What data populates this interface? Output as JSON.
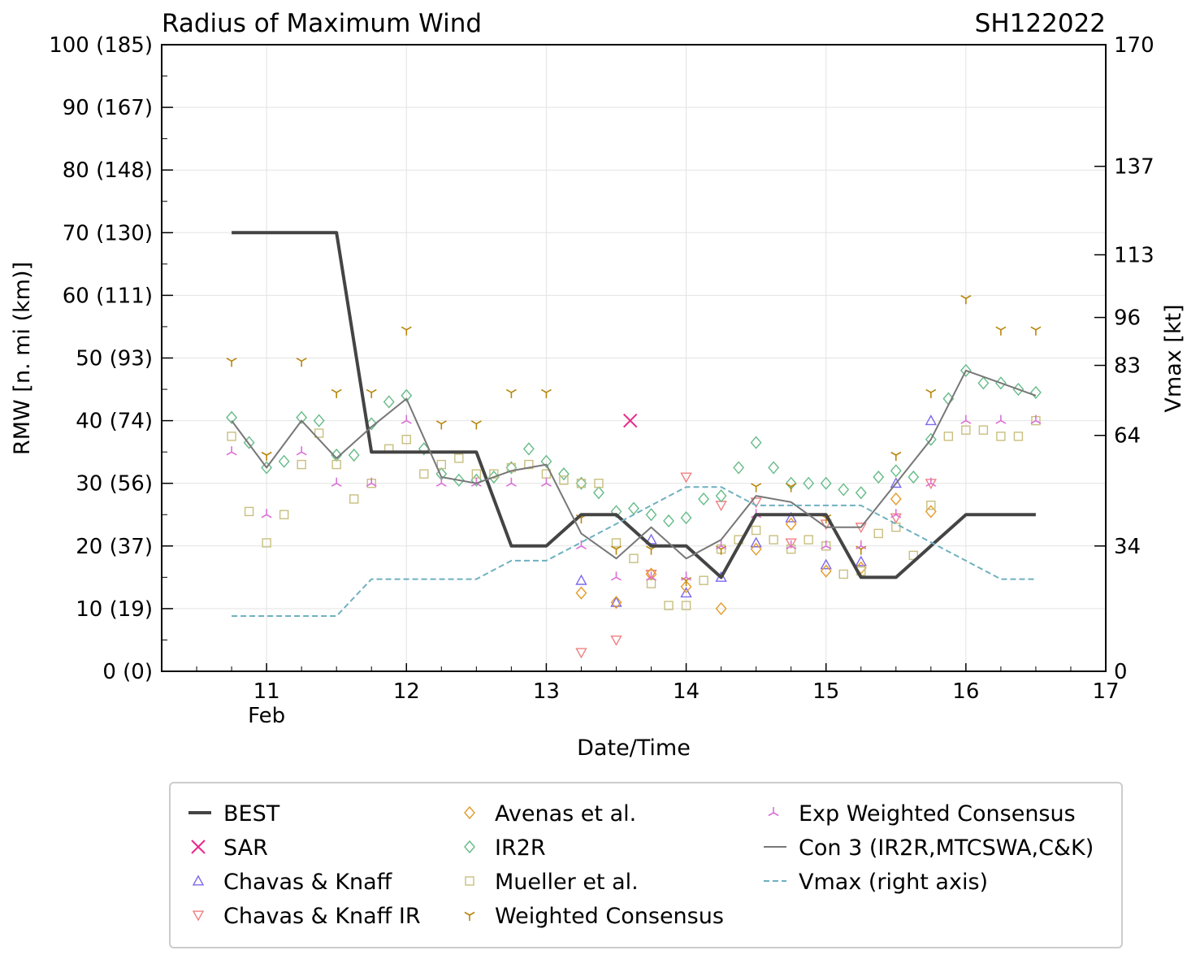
{
  "chart_data": {
    "type": "line",
    "title": "Radius of Maximum Wind",
    "storm_id": "SH122022",
    "xlabel": "Date/Time",
    "ylabel": "RMW [n. mi (km)]",
    "y2label": "Vmax [kt]",
    "xlim": [
      10.25,
      17
    ],
    "ylim": [
      0,
      100
    ],
    "y2lim": [
      0,
      170
    ],
    "x_ticks": [
      {
        "value": 11,
        "label": "11",
        "sublabel": "Feb"
      },
      {
        "value": 12,
        "label": "12",
        "sublabel": ""
      },
      {
        "value": 13,
        "label": "13",
        "sublabel": ""
      },
      {
        "value": 14,
        "label": "14",
        "sublabel": ""
      },
      {
        "value": 15,
        "label": "15",
        "sublabel": ""
      },
      {
        "value": 16,
        "label": "16",
        "sublabel": ""
      },
      {
        "value": 17,
        "label": "17",
        "sublabel": ""
      }
    ],
    "y_ticks": [
      {
        "value": 0,
        "label": "0 (0)"
      },
      {
        "value": 10,
        "label": "10 (19)"
      },
      {
        "value": 20,
        "label": "20 (37)"
      },
      {
        "value": 30,
        "label": "30 (56)"
      },
      {
        "value": 40,
        "label": "40 (74)"
      },
      {
        "value": 50,
        "label": "50 (93)"
      },
      {
        "value": 60,
        "label": "60 (111)"
      },
      {
        "value": 70,
        "label": "70 (130)"
      },
      {
        "value": 80,
        "label": "80 (148)"
      },
      {
        "value": 90,
        "label": "90 (167)"
      },
      {
        "value": 100,
        "label": "100 (185)"
      }
    ],
    "y2_ticks": [
      {
        "value": 0,
        "label": "0"
      },
      {
        "value": 34,
        "label": "34"
      },
      {
        "value": 64,
        "label": "64"
      },
      {
        "value": 83,
        "label": "83"
      },
      {
        "value": 96,
        "label": "96"
      },
      {
        "value": 113,
        "label": "113"
      },
      {
        "value": 137,
        "label": "137"
      },
      {
        "value": 170,
        "label": "170"
      }
    ],
    "grid": true,
    "legend_position": "bottom",
    "series": [
      {
        "name": "BEST",
        "kind": "line",
        "style": "solid",
        "color": "#444444",
        "x": [
          10.75,
          11.0,
          11.25,
          11.5,
          11.75,
          12.0,
          12.25,
          12.5,
          12.75,
          13.0,
          13.25,
          13.5,
          13.75,
          14.0,
          14.25,
          14.5,
          14.75,
          15.0,
          15.25,
          15.5,
          15.75,
          16.0,
          16.25,
          16.5
        ],
        "y": [
          70,
          70,
          70,
          70,
          35,
          35,
          35,
          35,
          20,
          20,
          25,
          25,
          20,
          20,
          15,
          25,
          25,
          25,
          15,
          15,
          20,
          25,
          25,
          25
        ]
      },
      {
        "name": "SAR",
        "kind": "marker",
        "marker": "x",
        "color": "#e7298a",
        "x": [
          13.6
        ],
        "y": [
          40
        ]
      },
      {
        "name": "Chavas & Knaff",
        "kind": "marker",
        "marker": "triangle-up",
        "color": "#7b68ee",
        "x": [
          13.25,
          13.5,
          13.75,
          14.0,
          14.25,
          14.5,
          14.75,
          15.0,
          15.25,
          15.5,
          15.75
        ],
        "y": [
          14.5,
          11,
          21,
          12.5,
          15,
          20.5,
          24.5,
          17,
          17.5,
          30,
          40
        ]
      },
      {
        "name": "Chavas & Knaff IR",
        "kind": "marker",
        "marker": "triangle-down",
        "color": "#f08080",
        "x": [
          13.25,
          13.5,
          13.75,
          14.0,
          14.25,
          14.5,
          14.75,
          15.0,
          15.25,
          15.5,
          15.75
        ],
        "y": [
          3,
          5,
          15.5,
          31,
          26.5,
          27,
          20.5,
          23.5,
          23,
          24.5,
          30
        ]
      },
      {
        "name": "Avenas et al.",
        "kind": "marker",
        "marker": "diamond",
        "color": "#e69a28",
        "x": [
          13.25,
          13.5,
          13.75,
          14.0,
          14.25,
          14.5,
          14.75,
          15.0,
          15.25,
          15.5,
          15.75
        ],
        "y": [
          12.5,
          11,
          15.5,
          13.5,
          10,
          19.5,
          23.5,
          16,
          16.5,
          27.5,
          25.5
        ]
      },
      {
        "name": "IR2R",
        "kind": "marker",
        "marker": "diamond",
        "color": "#66bb88",
        "x": [
          10.75,
          10.875,
          11.0,
          11.125,
          11.25,
          11.375,
          11.5,
          11.625,
          11.75,
          11.875,
          12.0,
          12.125,
          12.25,
          12.375,
          12.5,
          12.625,
          12.75,
          12.875,
          13.0,
          13.125,
          13.25,
          13.375,
          13.5,
          13.625,
          13.75,
          13.875,
          14.0,
          14.125,
          14.25,
          14.375,
          14.5,
          14.625,
          14.75,
          14.875,
          15.0,
          15.125,
          15.25,
          15.375,
          15.5,
          15.625,
          15.75,
          15.875,
          16.0,
          16.125,
          16.25,
          16.375,
          16.5
        ],
        "y": [
          40.5,
          36.5,
          32.5,
          33.5,
          40.5,
          40,
          34.5,
          34.5,
          39.5,
          43,
          44,
          35.5,
          31.5,
          30.5,
          30.5,
          31,
          32.5,
          35.5,
          33.5,
          31.5,
          30,
          28.5,
          25.5,
          26,
          25,
          24,
          24.5,
          27.5,
          28,
          32.5,
          36.5,
          32.5,
          30,
          30,
          30,
          29,
          28.5,
          31,
          32,
          31,
          37,
          43.5,
          48,
          46,
          46,
          45,
          44.5
        ]
      },
      {
        "name": "Mueller et al.",
        "kind": "marker",
        "marker": "square",
        "color": "#c8bf7f",
        "x": [
          10.75,
          10.875,
          11.0,
          11.125,
          11.25,
          11.375,
          11.5,
          11.625,
          11.75,
          11.875,
          12.0,
          12.125,
          12.25,
          12.375,
          12.5,
          12.625,
          12.75,
          12.875,
          13.0,
          13.125,
          13.25,
          13.375,
          13.5,
          13.625,
          13.75,
          13.875,
          14.0,
          14.125,
          14.25,
          14.375,
          14.5,
          14.625,
          14.75,
          14.875,
          15.0,
          15.125,
          15.25,
          15.375,
          15.5,
          15.625,
          15.75,
          15.875,
          16.0,
          16.125,
          16.25,
          16.375,
          16.5
        ],
        "y": [
          37.5,
          25.5,
          20.5,
          25,
          33,
          38,
          33,
          27.5,
          30,
          35.5,
          37,
          31.5,
          33,
          34,
          31.5,
          31.5,
          32.5,
          33,
          31.5,
          30.5,
          30,
          30,
          20.5,
          18,
          14,
          10.5,
          10.5,
          14.5,
          19.5,
          21,
          22.5,
          21,
          19.5,
          21,
          20,
          15.5,
          16,
          22,
          23,
          18.5,
          26.5,
          37.5,
          38.5,
          38.5,
          37.5,
          37.5,
          40
        ]
      },
      {
        "name": "Weighted Consensus",
        "kind": "marker",
        "marker": "tri-down",
        "color": "#b8860b",
        "x": [
          10.75,
          11.0,
          11.25,
          11.5,
          11.75,
          12.0,
          12.25,
          12.5,
          12.75,
          13.0,
          13.25,
          13.5,
          13.75,
          14.0,
          14.25,
          14.5,
          14.75,
          15.0,
          15.25,
          15.5,
          15.75,
          16.0,
          16.25,
          16.5
        ],
        "y": [
          49.5,
          34.5,
          49.5,
          44.5,
          44.5,
          54.5,
          39.5,
          39.5,
          44.5,
          44.5,
          24.5,
          19.5,
          19.5,
          14.5,
          19.5,
          29.5,
          29.5,
          24.5,
          19.5,
          34.5,
          44.5,
          59.5,
          54.5,
          54.5
        ]
      },
      {
        "name": "Exp Weighted Consensus",
        "kind": "marker",
        "marker": "tri-up",
        "color": "#da70d6",
        "x": [
          10.75,
          11.0,
          11.25,
          11.5,
          11.75,
          12.0,
          12.25,
          12.5,
          12.75,
          13.0,
          13.25,
          13.5,
          13.75,
          14.0,
          14.25,
          14.5,
          14.75,
          15.0,
          15.25,
          15.5,
          15.75,
          16.0,
          16.25,
          16.5
        ],
        "y": [
          35,
          25,
          35,
          30,
          30,
          40,
          30,
          30,
          30,
          30,
          20,
          15,
          15,
          15,
          20,
          25,
          20,
          20,
          20,
          25,
          30,
          40,
          40,
          40
        ]
      },
      {
        "name": "Con 3 (IR2R,MTCSWA,C&K)",
        "kind": "line",
        "style": "solid",
        "color": "#777777",
        "x": [
          10.75,
          11.0,
          11.25,
          11.5,
          11.75,
          12.0,
          12.25,
          12.5,
          12.75,
          13.0,
          13.25,
          13.5,
          13.75,
          14.0,
          14.25,
          14.5,
          14.75,
          15.0,
          15.25,
          15.5,
          15.75,
          16.0,
          16.25,
          16.5
        ],
        "y": [
          40,
          32.5,
          40,
          34,
          39,
          43.5,
          31,
          30,
          32,
          33,
          22,
          18,
          23,
          18,
          21,
          28,
          27,
          23,
          23,
          30,
          37,
          48,
          46,
          44
        ]
      },
      {
        "name": "Vmax (right axis)",
        "kind": "line",
        "style": "dashed",
        "color": "#6fb0c0",
        "axis": "right",
        "x": [
          10.75,
          11.0,
          11.25,
          11.5,
          11.75,
          12.0,
          12.25,
          12.5,
          12.75,
          13.0,
          13.25,
          13.5,
          13.75,
          14.0,
          14.25,
          14.5,
          14.75,
          15.0,
          15.25,
          15.5,
          15.75,
          16.0,
          16.25,
          16.5
        ],
        "y": [
          15,
          15,
          15,
          15,
          25,
          25,
          25,
          25,
          30,
          30,
          35,
          40,
          45,
          50,
          50,
          45,
          45,
          45,
          45,
          40,
          35,
          30,
          25,
          25
        ]
      }
    ]
  }
}
